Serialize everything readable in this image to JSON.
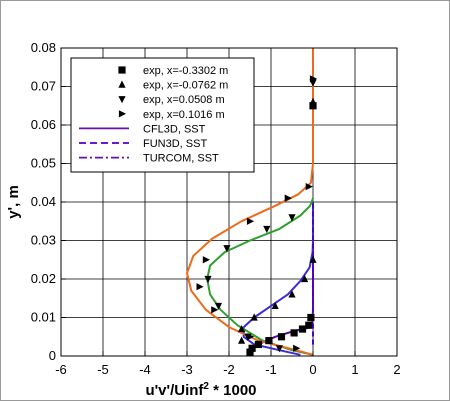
{
  "chart_data": {
    "type": "line",
    "xlabel": "u'v'/Uinf",
    "xlabel_sup": "2",
    "xlabel_suffix": " * 1000",
    "ylabel": "y', m",
    "xlim": [
      -6,
      2
    ],
    "ylim": [
      0,
      0.08
    ],
    "xticks": [
      "-6",
      "-5",
      "-4",
      "-3",
      "-2",
      "-1",
      "0",
      "1",
      "2"
    ],
    "yticks": [
      "0",
      "0.01",
      "0.02",
      "0.03",
      "0.04",
      "0.05",
      "0.06",
      "0.07",
      "0.08"
    ],
    "grid": true,
    "legend_position": "top-left",
    "legend": [
      {
        "label": "exp, x=-0.3302 m",
        "kind": "marker",
        "marker": "square"
      },
      {
        "label": "exp, x=-0.0762 m",
        "kind": "marker",
        "marker": "triangle-up"
      },
      {
        "label": "exp, x=0.0508 m",
        "kind": "marker",
        "marker": "triangle-down"
      },
      {
        "label": "exp, x=0.1016 m",
        "kind": "marker",
        "marker": "triangle-right"
      },
      {
        "label": "CFL3D, SST",
        "kind": "line",
        "dash": "solid",
        "color": "#6a0dad"
      },
      {
        "label": "FUN3D, SST",
        "kind": "line",
        "dash": "dashed",
        "color": "#4b00c8"
      },
      {
        "label": "TURCOM, SST",
        "kind": "line",
        "dash": "dashdot",
        "color": "#6a0dad"
      }
    ],
    "series": [
      {
        "color": "#5a0aa0",
        "points": [
          [
            -1.55,
            0.0003
          ],
          [
            -1.5,
            0.0015
          ],
          [
            -1.3,
            0.003
          ],
          [
            -0.9,
            0.005
          ],
          [
            -0.45,
            0.0065
          ],
          [
            -0.12,
            0.0073
          ],
          [
            -0.02,
            0.008
          ],
          [
            0,
            0.012
          ],
          [
            0,
            0.02
          ],
          [
            0,
            0.03
          ],
          [
            0,
            0.04
          ]
        ]
      },
      {
        "color": "#3d2bd6",
        "points": [
          [
            -0.3,
            0.0003
          ],
          [
            -0.8,
            0.0015
          ],
          [
            -1.4,
            0.003
          ],
          [
            -1.65,
            0.005
          ],
          [
            -1.65,
            0.0075
          ],
          [
            -1.4,
            0.01
          ],
          [
            -1.0,
            0.013
          ],
          [
            -0.6,
            0.016
          ],
          [
            -0.3,
            0.0195
          ],
          [
            -0.08,
            0.023
          ],
          [
            -0.01,
            0.027
          ],
          [
            0,
            0.03
          ],
          [
            0,
            0.04
          ]
        ]
      },
      {
        "color": "#2ca02c",
        "points": [
          [
            0,
            0.0003
          ],
          [
            -0.5,
            0.0015
          ],
          [
            -1.2,
            0.004
          ],
          [
            -1.8,
            0.008
          ],
          [
            -2.2,
            0.012
          ],
          [
            -2.45,
            0.016
          ],
          [
            -2.52,
            0.02
          ],
          [
            -2.45,
            0.0235
          ],
          [
            -2.1,
            0.027
          ],
          [
            -1.5,
            0.03
          ],
          [
            -0.8,
            0.033
          ],
          [
            -0.3,
            0.0365
          ],
          [
            -0.07,
            0.039
          ],
          [
            0,
            0.041
          ]
        ]
      },
      {
        "color": "#ee6a1a",
        "points": [
          [
            0,
            0.0003
          ],
          [
            -0.4,
            0.0015
          ],
          [
            -1.3,
            0.004
          ],
          [
            -2.0,
            0.0075
          ],
          [
            -2.55,
            0.012
          ],
          [
            -2.9,
            0.017
          ],
          [
            -3.0,
            0.0215
          ],
          [
            -2.85,
            0.026
          ],
          [
            -2.4,
            0.0305
          ],
          [
            -1.7,
            0.035
          ],
          [
            -0.9,
            0.039
          ],
          [
            -0.35,
            0.042
          ],
          [
            -0.05,
            0.045
          ],
          [
            0,
            0.05
          ],
          [
            0,
            0.08
          ]
        ]
      }
    ],
    "markers": [
      {
        "marker": "square",
        "points": [
          [
            -1.5,
            0.001
          ],
          [
            -1.45,
            0.002
          ],
          [
            -1.3,
            0.003
          ],
          [
            -1.05,
            0.004
          ],
          [
            -0.75,
            0.005
          ],
          [
            -0.45,
            0.006
          ],
          [
            -0.25,
            0.007
          ],
          [
            -0.1,
            0.008
          ],
          [
            -0.05,
            0.01
          ],
          [
            0,
            0.065
          ]
        ]
      },
      {
        "marker": "triangle-up",
        "points": [
          [
            -1.5,
            0.001
          ],
          [
            -1.7,
            0.004
          ],
          [
            -1.7,
            0.007
          ],
          [
            -1.4,
            0.01
          ],
          [
            -0.9,
            0.013
          ],
          [
            -0.5,
            0.016
          ],
          [
            -0.2,
            0.02
          ],
          [
            0,
            0.025
          ],
          [
            0,
            0.066
          ]
        ]
      },
      {
        "marker": "triangle-down",
        "points": [
          [
            -0.8,
            0.002
          ],
          [
            -1.55,
            0.005
          ],
          [
            -2.25,
            0.013
          ],
          [
            -2.5,
            0.02
          ],
          [
            -2.05,
            0.028
          ],
          [
            -1.1,
            0.033
          ],
          [
            -0.5,
            0.036
          ],
          [
            0,
            0.071
          ]
        ]
      },
      {
        "marker": "triangle-right",
        "points": [
          [
            -0.4,
            0.002
          ],
          [
            -1.5,
            0.005
          ],
          [
            -2.35,
            0.012
          ],
          [
            -2.7,
            0.018
          ],
          [
            -2.55,
            0.025
          ],
          [
            -1.5,
            0.035
          ],
          [
            -0.6,
            0.041
          ],
          [
            -0.1,
            0.044
          ],
          [
            0,
            0.072
          ]
        ]
      }
    ]
  }
}
